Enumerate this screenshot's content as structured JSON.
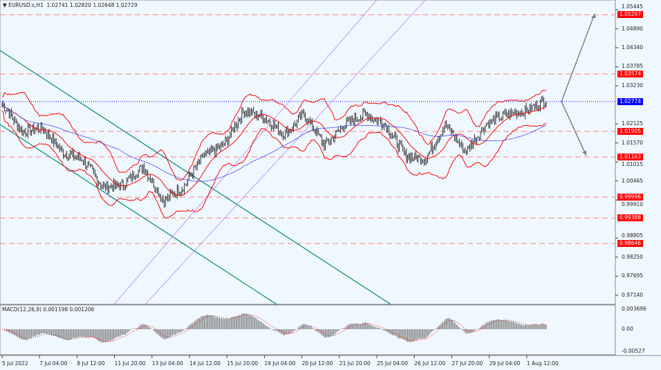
{
  "header": {
    "symbol": "EURUSD.s,H1",
    "open": "1.02741",
    "high": "1.02820",
    "low": "1.02648",
    "close": "1.02729"
  },
  "macd_label": {
    "name": "MACD(12,26,9)",
    "main": "0.001198",
    "signal": "0.001206"
  },
  "colors": {
    "background": "#f0f8ff",
    "candles": "#000000",
    "bands": "#ff0000",
    "ma": "#3333ff",
    "levels": "#ff0000",
    "channel": "#008b80",
    "fib_channel": "#b070ff",
    "current_price": "#0000ff",
    "arrows": "#808080"
  },
  "chart_data": {
    "type": "candlestick",
    "symbol": "EURUSD.s",
    "timeframe": "H1",
    "ylim": [
      0.9683,
      1.0575
    ],
    "price_ticks": [
      "1.05445",
      "1.04890",
      "1.04340",
      "1.03785",
      "1.03230",
      "1.02125",
      "1.01570",
      "1.01015",
      "1.00465",
      "0.99910",
      "0.98805",
      "0.98250",
      "0.97695",
      "0.97140"
    ],
    "time_ticks": [
      "5 Jul 2022",
      "7 Jul 04:00",
      "8 Jul 12:00",
      "11 Jul 20:00",
      "13 Jul 04:00",
      "14 Jul 12:00",
      "15 Jul 20:00",
      "19 Jul 04:00",
      "20 Jul 12:00",
      "21 Jul 20:00",
      "25 Jul 04:00",
      "26 Jul 12:00",
      "27 Jul 20:00",
      "29 Jul 04:00",
      "1 Aug 12:00"
    ],
    "price_path": [
      1.0271,
      1.0191,
      1.0201,
      1.013,
      1.011,
      1.003,
      1.0034,
      1.009,
      0.999,
      1.003,
      1.012,
      1.015,
      1.0251,
      1.0231,
      1.0181,
      1.0241,
      1.015,
      1.0211,
      1.0241,
      1.0211,
      1.012,
      1.011,
      1.0211,
      1.013,
      1.0211,
      1.0241,
      1.0251,
      1.0281
    ],
    "levels": [
      {
        "price": "1.05297",
        "style": "dashed"
      },
      {
        "price": "1.03574",
        "style": "dashed"
      },
      {
        "price": "1.01905",
        "style": "dashed"
      },
      {
        "price": "1.01163",
        "style": "dashed"
      },
      {
        "price": "0.99996",
        "style": "dashed"
      },
      {
        "price": "0.99388",
        "style": "dashed"
      },
      {
        "price": "0.98646",
        "style": "dashed"
      }
    ],
    "current_price": "1.02774",
    "indicators": [
      "Bollinger Bands",
      "Moving Average",
      "MACD(12,26,9)"
    ],
    "macd_ticks": [
      "0.003696",
      "0.00",
      "-0.00527"
    ]
  }
}
